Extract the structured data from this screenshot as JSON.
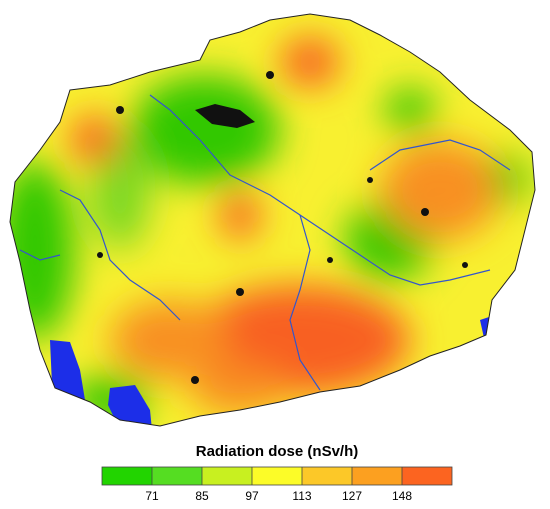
{
  "legend": {
    "title": "Radiation dose (nSv/h)",
    "colors": [
      "#22d400",
      "#55dd22",
      "#c8f020",
      "#fcfc28",
      "#fcc828",
      "#fca020",
      "#fc6420"
    ],
    "ticks": [
      71,
      85,
      97,
      113,
      127,
      148
    ]
  }
}
